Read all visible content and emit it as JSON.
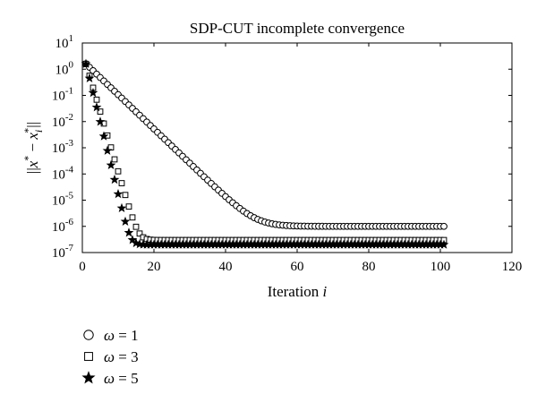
{
  "chart_data": {
    "type": "scatter",
    "title": "SDP-CUT incomplete convergence",
    "xlabel_main": "Iteration ",
    "xlabel_var": "i",
    "ylabel_open": "||",
    "ylabel_x1": "x",
    "ylabel_sup1": "*",
    "ylabel_minus": " − ",
    "ylabel_x2": "x",
    "ylabel_sub": "i",
    "ylabel_sup2": "*",
    "ylabel_close": "||",
    "xlim": [
      0,
      120
    ],
    "ylim": [
      1e-07,
      10
    ],
    "yscale": "log",
    "xticks": [
      "0",
      "20",
      "40",
      "60",
      "80",
      "100",
      "120"
    ],
    "yticks": [
      {
        "base": "10",
        "exp": "1"
      },
      {
        "base": "10",
        "exp": "0"
      },
      {
        "base": "10",
        "exp": "-1"
      },
      {
        "base": "10",
        "exp": "-2"
      },
      {
        "base": "10",
        "exp": "-3"
      },
      {
        "base": "10",
        "exp": "-4"
      },
      {
        "base": "10",
        "exp": "-5"
      },
      {
        "base": "10",
        "exp": "-6"
      },
      {
        "base": "10",
        "exp": "-7"
      }
    ],
    "grid": false,
    "legend_position": "below-left",
    "x_range": [
      1,
      101
    ],
    "series": [
      {
        "name_var": "ω",
        "name_rest": " = 1",
        "marker": "circle",
        "start": 1.6,
        "decay_per_iter": 0.74,
        "floor": 1e-06,
        "transition_iter": 36
      },
      {
        "name_var": "ω",
        "name_rest": " = 3",
        "marker": "square",
        "start": 1.6,
        "decay_per_iter": 0.35,
        "floor": 3e-07,
        "transition_iter": 16
      },
      {
        "name_var": "ω",
        "name_rest": " = 5",
        "marker": "star",
        "start": 1.6,
        "decay_per_iter": 0.28,
        "floor": 2e-07,
        "transition_iter": 13
      }
    ]
  }
}
